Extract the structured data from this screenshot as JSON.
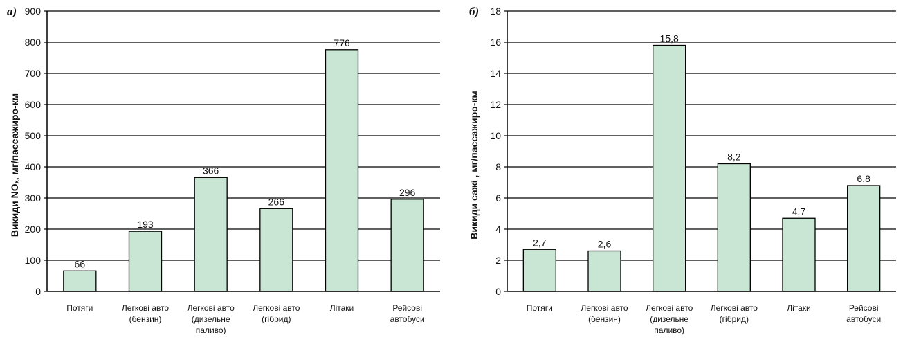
{
  "chart_data": [
    {
      "type": "bar",
      "panel_label": "а)",
      "ylabel": "Викиди NOₓ, мг/пассажиро-км",
      "categories": [
        [
          "Потяги"
        ],
        [
          "Легкові авто",
          "(бензин)"
        ],
        [
          "Легкові авто",
          "(дизельне",
          "паливо)"
        ],
        [
          "Легкові авто",
          "(гібрид)"
        ],
        [
          "Літаки"
        ],
        [
          "Рейсові",
          "автобуси"
        ]
      ],
      "values": [
        66,
        193,
        366,
        266,
        776,
        296
      ],
      "value_labels": [
        "66",
        "193",
        "366",
        "266",
        "776",
        "296"
      ],
      "ylim": [
        0,
        900
      ],
      "yticks": [
        0,
        100,
        200,
        300,
        400,
        500,
        600,
        700,
        800,
        900
      ],
      "ytick_labels": [
        "0",
        "100",
        "200",
        "300",
        "400",
        "500",
        "600",
        "700",
        "800",
        "900"
      ],
      "grid": true,
      "bar_color": "#c8e6d3",
      "grid_color": "#000000"
    },
    {
      "type": "bar",
      "panel_label": "б)",
      "ylabel": "Викиди сажі , мг/пассажиро-км",
      "categories": [
        [
          "Потяги"
        ],
        [
          "Легкові авто",
          "(бензин)"
        ],
        [
          "Легкові авто",
          "(дизельне",
          "паливо)"
        ],
        [
          "Легкові авто",
          "(гібрид)"
        ],
        [
          "Літаки"
        ],
        [
          "Рейсові",
          "автобуси"
        ]
      ],
      "values": [
        2.7,
        2.6,
        15.8,
        8.2,
        4.7,
        6.8
      ],
      "value_labels": [
        "2,7",
        "2,6",
        "15,8",
        "8,2",
        "4,7",
        "6,8"
      ],
      "ylim": [
        0,
        18
      ],
      "yticks": [
        0,
        2,
        4,
        6,
        8,
        10,
        12,
        14,
        16,
        18
      ],
      "ytick_labels": [
        "0",
        "2",
        "4",
        "6",
        "8",
        "10",
        "12",
        "14",
        "16",
        "18"
      ],
      "grid": true,
      "bar_color": "#c8e6d3",
      "grid_color": "#000000"
    }
  ]
}
